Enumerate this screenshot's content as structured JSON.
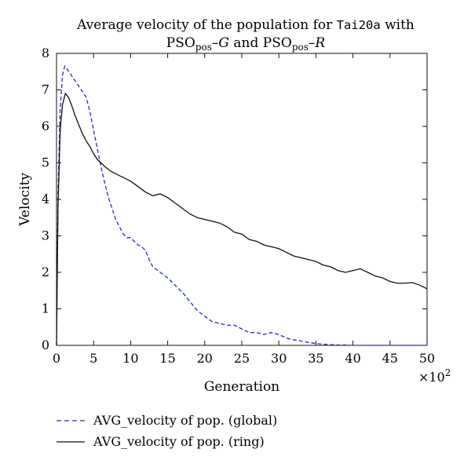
{
  "chart_data": {
    "type": "line",
    "title": {
      "line1_prefix": "Average velocity of the population for ",
      "line1_code": "Tai20a",
      "line1_suffix": " with",
      "line2_a_base": "PSO",
      "line2_a_sub": "pos",
      "line2_a_tail": "–G",
      "line2_and": " and ",
      "line2_b_base": "PSO",
      "line2_b_sub": "pos",
      "line2_b_tail": "–R"
    },
    "xlabel": "Generation",
    "ylabel": "Velocity",
    "x_multiplier": {
      "base": "×10",
      "exp": "2"
    },
    "xlim": [
      0,
      50
    ],
    "ylim": [
      0,
      8
    ],
    "xticks": [
      0,
      5,
      10,
      15,
      20,
      25,
      30,
      35,
      40,
      45,
      50
    ],
    "yticks": [
      0,
      1,
      2,
      3,
      4,
      5,
      6,
      7,
      8
    ],
    "grid": false,
    "legend_position": "below-left",
    "series": [
      {
        "name": "AVG_velocity of pop. (global)",
        "style": "dashed",
        "color": "#1f2bd1",
        "x": [
          0,
          0.2,
          0.5,
          0.8,
          1.1,
          1.5,
          2,
          2.5,
          3,
          3.5,
          4,
          4.5,
          5,
          5.5,
          6,
          6.5,
          7,
          7.5,
          8,
          8.5,
          9,
          9.5,
          10,
          10.5,
          11,
          11.5,
          12,
          12.5,
          13,
          14,
          15,
          16,
          17,
          18,
          19,
          20,
          21,
          22,
          23,
          24,
          25,
          26,
          27,
          28,
          29,
          30,
          31,
          32,
          33,
          34,
          35,
          36,
          37,
          38,
          39,
          40,
          42,
          44,
          46,
          48,
          50
        ],
        "y": [
          0,
          4.2,
          6.5,
          7.4,
          7.65,
          7.55,
          7.4,
          7.25,
          7.1,
          6.95,
          6.8,
          6.4,
          5.9,
          5.4,
          4.9,
          4.45,
          4.05,
          3.75,
          3.45,
          3.25,
          3.05,
          2.95,
          2.95,
          2.85,
          2.75,
          2.7,
          2.6,
          2.35,
          2.15,
          2.0,
          1.85,
          1.65,
          1.45,
          1.2,
          0.95,
          0.8,
          0.65,
          0.6,
          0.55,
          0.55,
          0.45,
          0.35,
          0.35,
          0.3,
          0.35,
          0.3,
          0.2,
          0.15,
          0.12,
          0.08,
          0.05,
          0.03,
          0.02,
          0.01,
          0.01,
          0.0,
          0.0,
          0.0,
          0.0,
          0.0,
          0.0
        ]
      },
      {
        "name": "AVG_velocity of pop. (ring)",
        "style": "solid",
        "color": "#111111",
        "x": [
          0,
          0.2,
          0.5,
          0.8,
          1.2,
          1.6,
          2,
          2.5,
          3,
          3.5,
          4,
          4.5,
          5,
          5.5,
          6,
          6.5,
          7,
          7.5,
          8,
          8.5,
          9,
          9.5,
          10,
          11,
          12,
          13,
          14,
          15,
          16,
          17,
          18,
          19,
          20,
          21,
          22,
          23,
          24,
          25,
          26,
          27,
          28,
          29,
          30,
          31,
          32,
          33,
          34,
          35,
          36,
          37,
          38,
          39,
          40,
          41,
          42,
          43,
          44,
          45,
          46,
          47,
          48,
          49,
          50
        ],
        "y": [
          0,
          3.8,
          5.9,
          6.6,
          6.9,
          6.8,
          6.6,
          6.3,
          6.05,
          5.8,
          5.6,
          5.45,
          5.25,
          5.1,
          5.0,
          4.9,
          4.82,
          4.75,
          4.7,
          4.65,
          4.6,
          4.55,
          4.5,
          4.35,
          4.2,
          4.1,
          4.15,
          4.05,
          3.9,
          3.75,
          3.6,
          3.5,
          3.45,
          3.4,
          3.35,
          3.25,
          3.1,
          3.05,
          2.9,
          2.85,
          2.75,
          2.7,
          2.65,
          2.55,
          2.45,
          2.4,
          2.35,
          2.3,
          2.2,
          2.15,
          2.05,
          2.0,
          2.05,
          2.1,
          2.0,
          1.9,
          1.85,
          1.75,
          1.7,
          1.7,
          1.72,
          1.65,
          1.55
        ]
      }
    ]
  }
}
